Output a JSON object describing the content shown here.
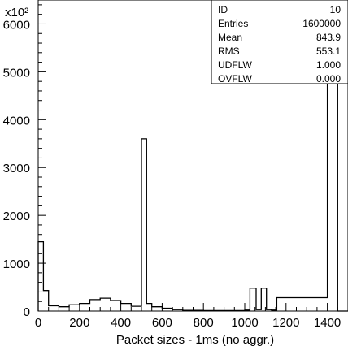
{
  "chart_data": {
    "type": "bar",
    "style": "step-histogram",
    "title": "",
    "xlabel": "Packet sizes - 1ms (no aggr.)",
    "ylabel": "",
    "y_multiplier_label": "x10²",
    "xlim": [
      0,
      1500
    ],
    "ylim": [
      0,
      6500
    ],
    "x_ticks": [
      0,
      200,
      400,
      600,
      800,
      1000,
      1200,
      1400
    ],
    "y_ticks": [
      0,
      1000,
      2000,
      3000,
      4000,
      5000,
      6000
    ],
    "grid": false,
    "bin_edges": [
      0,
      25,
      50,
      100,
      150,
      200,
      250,
      300,
      350,
      400,
      450,
      500,
      525,
      550,
      600,
      650,
      700,
      800,
      900,
      1000,
      1025,
      1055,
      1080,
      1105,
      1130,
      1155,
      1400,
      1425,
      1450,
      1475,
      1500
    ],
    "values": [
      1450,
      430,
      110,
      90,
      130,
      160,
      240,
      270,
      220,
      160,
      100,
      3600,
      160,
      90,
      60,
      30,
      15,
      10,
      10,
      20,
      480,
      30,
      480,
      30,
      20,
      280,
      5950,
      6150,
      0,
      0
    ]
  },
  "stats_box": {
    "rows": [
      {
        "label": "ID",
        "value": "10"
      },
      {
        "label": "Entries",
        "value": "1600000"
      },
      {
        "label": "Mean",
        "value": "843.9"
      },
      {
        "label": "RMS",
        "value": "553.1"
      },
      {
        "label": "UDFLW",
        "value": "1.000"
      },
      {
        "label": "OVFLW",
        "value": "0.000"
      }
    ]
  },
  "style": {
    "line_color": "#000000",
    "background": "#ffffff"
  }
}
